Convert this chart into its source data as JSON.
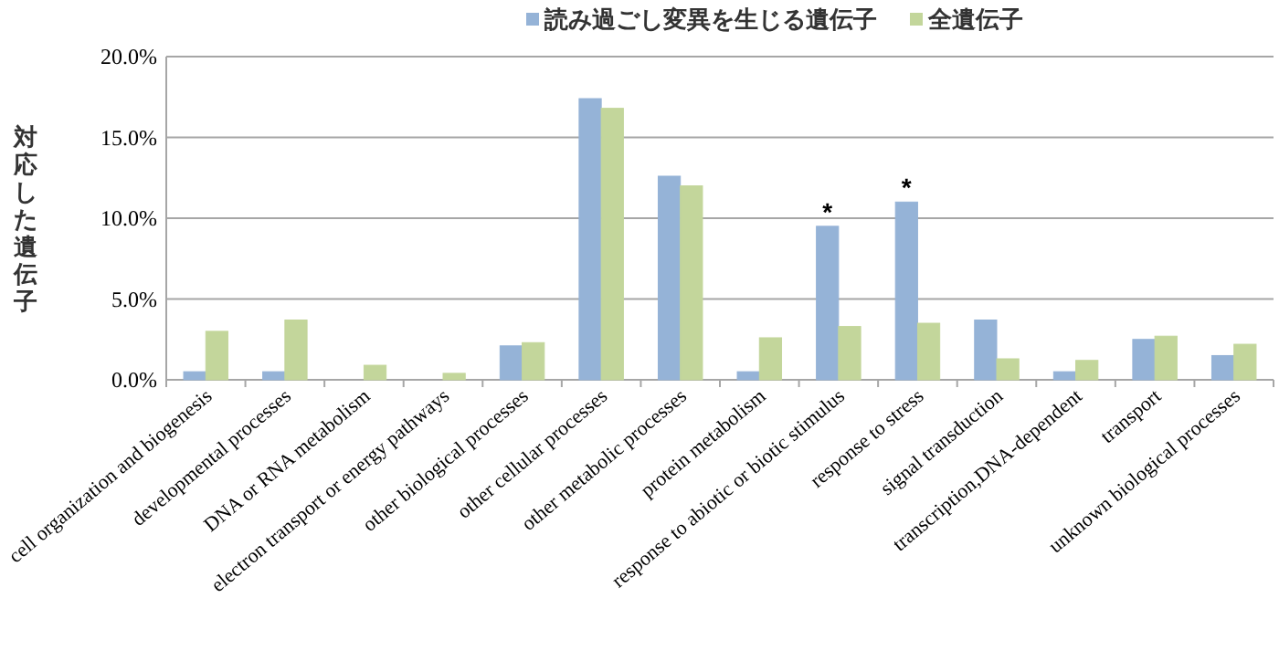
{
  "chart_data": {
    "type": "bar",
    "ylabel": "対応した遺伝子",
    "categories": [
      "cell organization and biogenesis",
      "developmental processes",
      "DNA or RNA metabolism",
      "electron transport or energy pathways",
      "other biological processes",
      "other cellular processes",
      "other metabolic processes",
      "protein metabolism",
      "response to abiotic or biotic stimulus",
      "response to stress",
      "signal transduction",
      "transcription,DNA-dependent",
      "transport",
      "unknown biological processes"
    ],
    "series": [
      {
        "name": "読み過ごし変異を生じる遺伝子",
        "color": "#95b3d7",
        "values": [
          0.5,
          0.5,
          0,
          0,
          2.1,
          17.4,
          12.6,
          0.5,
          9.5,
          11.0,
          3.7,
          0.5,
          2.5,
          1.5
        ]
      },
      {
        "name": "全遺伝子",
        "color": "#c3d69b",
        "values": [
          3.0,
          3.7,
          0.9,
          0.4,
          2.3,
          16.8,
          12.0,
          2.6,
          3.3,
          3.5,
          1.3,
          1.2,
          2.7,
          2.2
        ]
      }
    ],
    "ylim": [
      0,
      20
    ],
    "yticks": [
      {
        "value": 0,
        "label": "0.0%"
      },
      {
        "value": 5,
        "label": "5.0%"
      },
      {
        "value": 10,
        "label": "10.0%"
      },
      {
        "value": 15,
        "label": "15.0%"
      },
      {
        "value": 20,
        "label": "20.0%"
      }
    ],
    "grid": "y",
    "legend": "top",
    "annotations": [
      {
        "text": "*",
        "x": "response to abiotic or biotic stimulus",
        "y": 9.5
      },
      {
        "text": "*",
        "x": "response to stress",
        "y": 11.0
      }
    ]
  }
}
